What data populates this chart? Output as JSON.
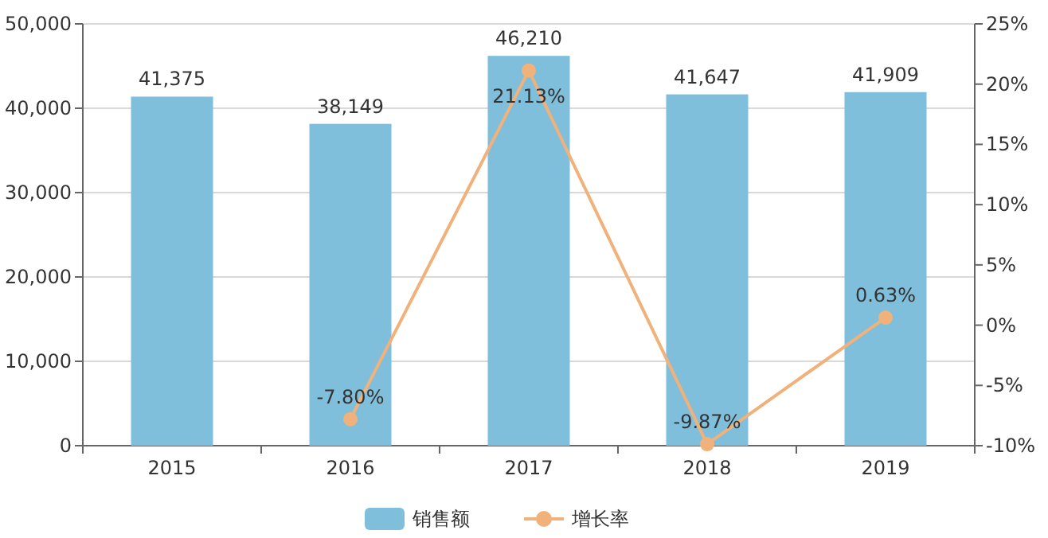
{
  "chart_data": {
    "type": "bar",
    "categories": [
      "2015",
      "2016",
      "2017",
      "2018",
      "2019"
    ],
    "series": [
      {
        "name": "销售额",
        "color": "#7fbfdc",
        "values": [
          41375,
          38149,
          46210,
          41647,
          41909
        ],
        "value_labels": [
          "41,375",
          "38,149",
          "46,210",
          "41,647",
          "41,909"
        ]
      },
      {
        "name": "增长率",
        "type": "line",
        "axis": "y2",
        "color": "#f0b27a",
        "values": [
          null,
          -7.8,
          21.13,
          -9.87,
          0.63
        ],
        "value_labels": [
          null,
          "-7.80%",
          "21.13%",
          "-9.87%",
          "0.63%"
        ]
      }
    ],
    "ylim": [
      0,
      50000
    ],
    "yticks": [
      {
        "value": 0,
        "label": "0"
      },
      {
        "value": 10000,
        "label": "10,000"
      },
      {
        "value": 20000,
        "label": "20,000"
      },
      {
        "value": 30000,
        "label": "30,000"
      },
      {
        "value": 40000,
        "label": "40,000"
      },
      {
        "value": 50000,
        "label": "50,000"
      }
    ],
    "y2lim": [
      -10,
      25
    ],
    "y2ticks": [
      {
        "value": -10,
        "label": "-10%"
      },
      {
        "value": -5,
        "label": "-5%"
      },
      {
        "value": 0,
        "label": "0%"
      },
      {
        "value": 5,
        "label": "5%"
      },
      {
        "value": 10,
        "label": "10%"
      },
      {
        "value": 15,
        "label": "15%"
      },
      {
        "value": 20,
        "label": "20%"
      },
      {
        "value": 25,
        "label": "25%"
      }
    ],
    "marker": "circle",
    "grid": "y",
    "legend": "bottom"
  }
}
